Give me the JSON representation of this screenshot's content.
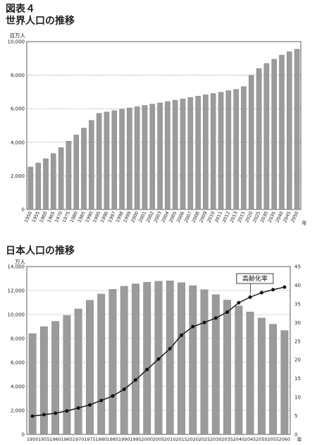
{
  "figure_label": "図表４",
  "chart_data": [
    {
      "type": "bar",
      "title": "世界人口の推移",
      "y_unit": "百万人",
      "x_unit": "年",
      "ylim": [
        0,
        10000
      ],
      "yticks": [
        "0",
        "2,000",
        "4,000",
        "6,000",
        "8,000",
        "10,000"
      ],
      "ytick_values": [
        0,
        2000,
        4000,
        6000,
        8000,
        10000
      ],
      "grid": true,
      "categories": [
        "1950",
        "1955",
        "1960",
        "1965",
        "1970",
        "1975",
        "1980",
        "1985",
        "1990",
        "1995",
        "1996",
        "1997",
        "1998",
        "1999",
        "2000",
        "2001",
        "2002",
        "2003",
        "2004",
        "2005",
        "2006",
        "2007",
        "2008",
        "2009",
        "2010",
        "2011",
        "2012",
        "2013",
        "2015",
        "2020",
        "2025",
        "2030",
        "2035",
        "2040",
        "2045",
        "2050"
      ],
      "values": [
        2530,
        2770,
        3030,
        3330,
        3690,
        4070,
        4440,
        4850,
        5310,
        5730,
        5810,
        5890,
        5970,
        6050,
        6120,
        6200,
        6280,
        6350,
        6430,
        6510,
        6590,
        6670,
        6750,
        6830,
        6910,
        6990,
        7080,
        7160,
        7320,
        8000,
        8400,
        8700,
        8950,
        9200,
        9400,
        9550
      ]
    },
    {
      "type": "bar",
      "title": "日本人口の推移",
      "y_unit": "万人",
      "x_unit": "年",
      "ylim": [
        0,
        14000
      ],
      "yticks": [
        "0",
        "2,000",
        "4,000",
        "6,000",
        "8,000",
        "10,000",
        "12,000",
        "14,000"
      ],
      "ytick_values": [
        0,
        2000,
        4000,
        6000,
        8000,
        10000,
        12000,
        14000
      ],
      "y2lim": [
        0,
        45
      ],
      "y2ticks": [
        "0",
        "5",
        "10",
        "15",
        "20",
        "25",
        "30",
        "35",
        "40",
        "45"
      ],
      "y2tick_values": [
        0,
        5,
        10,
        15,
        20,
        25,
        30,
        35,
        40,
        45
      ],
      "grid": true,
      "categories": [
        "1950",
        "1955",
        "1960",
        "1965",
        "1970",
        "1975",
        "1980",
        "1985",
        "1990",
        "1995",
        "2000",
        "2005",
        "2010",
        "2015",
        "2020",
        "2025",
        "2030",
        "2035",
        "2040",
        "2045",
        "2050",
        "2055",
        "2060"
      ],
      "values": [
        8410,
        8990,
        9430,
        9920,
        10470,
        11190,
        11710,
        12100,
        12360,
        12560,
        12690,
        12780,
        12810,
        12660,
        12410,
        12070,
        11660,
        11210,
        10730,
        10220,
        9710,
        9190,
        8670
      ],
      "line_series": {
        "name": "高齢化率",
        "axis": "right",
        "values": [
          4.9,
          5.3,
          5.7,
          6.3,
          7.1,
          7.9,
          9.1,
          10.3,
          12.1,
          14.6,
          17.4,
          20.2,
          23.0,
          26.6,
          28.9,
          30.0,
          31.2,
          32.8,
          35.3,
          36.8,
          38.0,
          38.8,
          39.5
        ]
      }
    }
  ]
}
